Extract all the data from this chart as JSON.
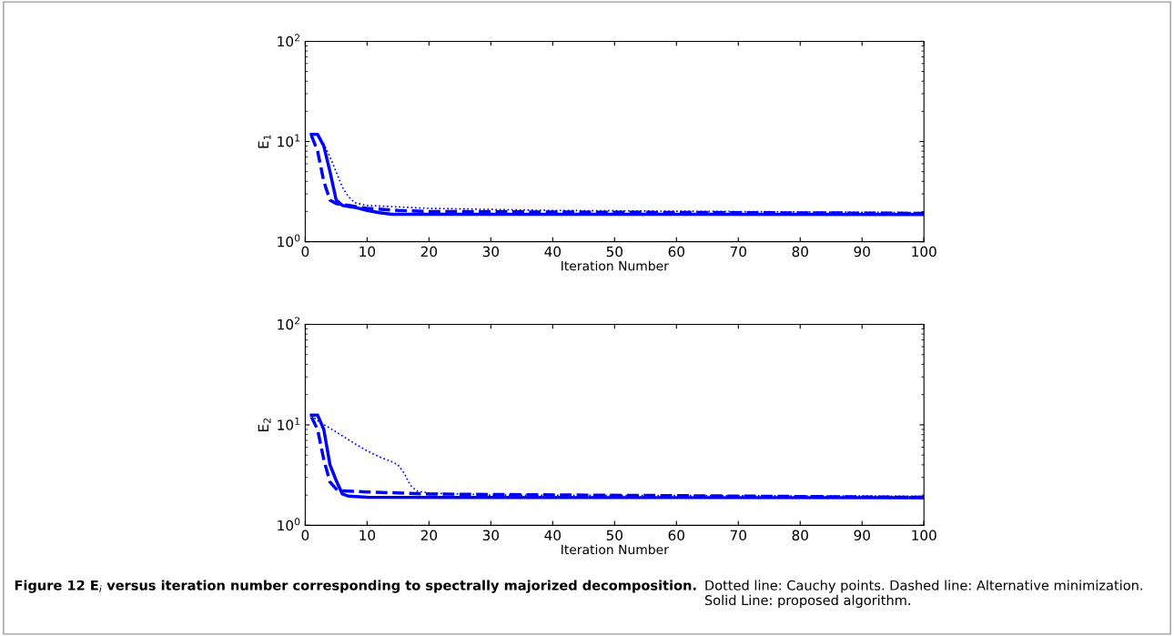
{
  "chart_data": [
    {
      "type": "line",
      "ylabel": "E$_{1}$",
      "xlabel": "Iteration Number",
      "log": "y",
      "grid": false,
      "legend": false,
      "xlim": [
        0,
        100
      ],
      "xticks": [
        0,
        10,
        20,
        30,
        40,
        50,
        60,
        70,
        80,
        90,
        100
      ],
      "ylim": [
        1,
        100
      ],
      "yticks": [
        {
          "value": 1,
          "label": "10$^{0}$"
        },
        {
          "value": 10,
          "label": "10$^{1}$"
        },
        {
          "value": 100,
          "label": "10$^{2}$"
        }
      ],
      "series": [
        {
          "color": "#0000ff",
          "line_style": "dotted",
          "x": [
            1,
            2,
            3,
            4,
            5,
            6,
            7,
            8,
            10,
            20,
            40,
            100
          ],
          "values": [
            12,
            11.5,
            9.5,
            7,
            5,
            3.5,
            2.8,
            2.45,
            2.3,
            2.15,
            2.05,
            1.95
          ]
        },
        {
          "color": "#0000ff",
          "line_style": "dashed",
          "x": [
            1,
            2,
            3,
            4,
            5,
            7,
            10,
            15,
            20,
            100
          ],
          "values": [
            11.5,
            8,
            4,
            2.6,
            2.4,
            2.3,
            2.15,
            2.05,
            2.0,
            1.92
          ]
        },
        {
          "color": "#0000ff",
          "line_style": "solid",
          "x": [
            1,
            2,
            3,
            4,
            5,
            6,
            8,
            10,
            12,
            14,
            100
          ],
          "values": [
            11.8,
            11.8,
            9,
            5,
            2.6,
            2.3,
            2.2,
            2.05,
            1.95,
            1.88,
            1.87
          ]
        }
      ]
    },
    {
      "type": "line",
      "ylabel": "E$_{2}$",
      "xlabel": "Iteration Number",
      "log": "y",
      "grid": false,
      "legend": false,
      "xlim": [
        0,
        100
      ],
      "xticks": [
        0,
        10,
        20,
        30,
        40,
        50,
        60,
        70,
        80,
        90,
        100
      ],
      "ylim": [
        1,
        100
      ],
      "yticks": [
        {
          "value": 1,
          "label": "10$^{0}$"
        },
        {
          "value": 10,
          "label": "10$^{1}$"
        },
        {
          "value": 100,
          "label": "10$^{2}$"
        }
      ],
      "annotations": [
        "Figure 12 E$_{i}$ versus iteration number corresponding to spectrally majorized decomposition.",
        "Dotted line: Cauchy points. Dashed line: Alternative minimization. Solid Line: proposed algorithm."
      ],
      "series": [
        {
          "color": "#0000ff",
          "line_style": "dotted",
          "x": [
            1,
            2,
            5,
            8,
            10,
            12,
            14,
            15,
            16,
            17,
            18,
            20,
            30,
            100
          ],
          "values": [
            12.5,
            11,
            8.5,
            6.5,
            5.5,
            4.8,
            4.3,
            4.0,
            3.3,
            2.5,
            2.2,
            2.1,
            2.0,
            1.95
          ]
        },
        {
          "color": "#0000ff",
          "line_style": "dashed",
          "x": [
            1,
            2,
            3,
            4,
            5,
            6,
            10,
            15,
            20,
            100
          ],
          "values": [
            12,
            9,
            4.5,
            2.7,
            2.3,
            2.2,
            2.15,
            2.1,
            2.05,
            1.9
          ]
        },
        {
          "color": "#0000ff",
          "line_style": "solid",
          "x": [
            1,
            2,
            3,
            4,
            5,
            6,
            7,
            10,
            100
          ],
          "values": [
            12.5,
            12.5,
            9,
            4,
            2.8,
            2.05,
            1.95,
            1.9,
            1.88
          ]
        }
      ]
    }
  ]
}
